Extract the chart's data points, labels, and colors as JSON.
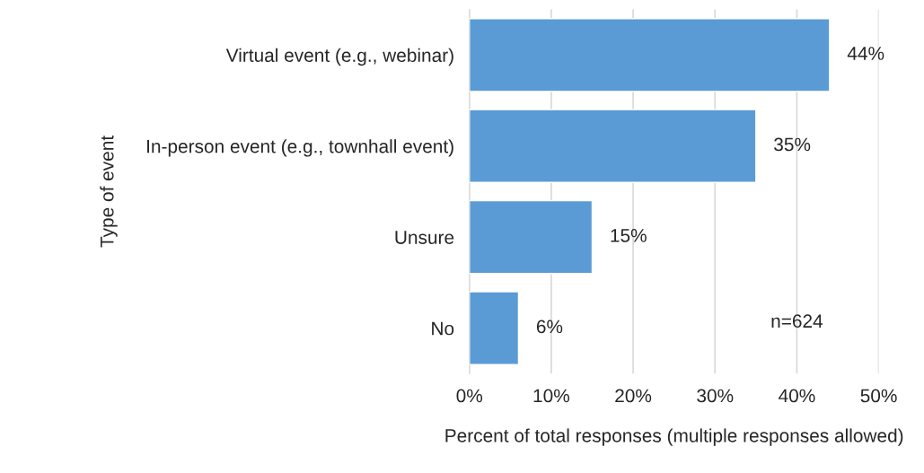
{
  "chart_data": {
    "type": "bar",
    "orientation": "horizontal",
    "categories": [
      "Virtual event (e.g., webinar)",
      "In-person event (e.g., townhall event)",
      "Unsure",
      "No"
    ],
    "values": [
      44,
      35,
      15,
      6
    ],
    "color": "#5b9bd5",
    "data_labels": true,
    "value_labels": [
      "44%",
      "35%",
      "15%",
      "6%"
    ],
    "xlabel": "Percent of total responses (multiple responses allowed)",
    "ylabel": "Type of event",
    "xlim": [
      0,
      50
    ],
    "xticks": [
      {
        "value": 0,
        "label": "0%"
      },
      {
        "value": 10,
        "label": "10%"
      },
      {
        "value": 20,
        "label": "20%"
      },
      {
        "value": 30,
        "label": "30%"
      },
      {
        "value": 40,
        "label": "40%"
      },
      {
        "value": 50,
        "label": "50%"
      }
    ],
    "grid": "x",
    "annotations": [
      "n=624"
    ]
  }
}
